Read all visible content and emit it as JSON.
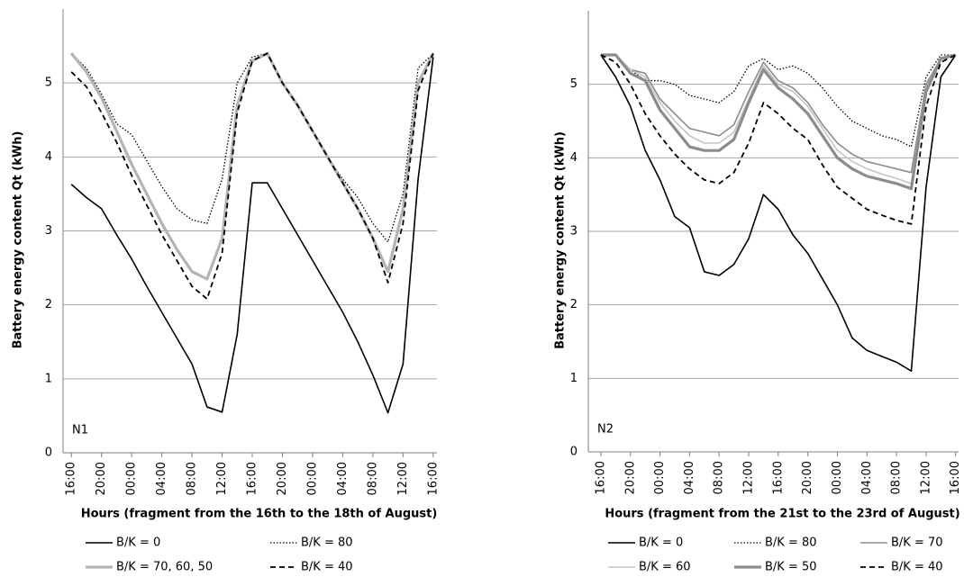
{
  "chart_data": [
    {
      "type": "line",
      "y_label": "Battery energy content Qt (kWh)",
      "x_label": "Hours (fragment from the 16th to the 18th of August)",
      "annotation": "N1",
      "xlim": [
        -1.1,
        48.5
      ],
      "ylim": [
        0,
        6
      ],
      "yticks": [
        0,
        1,
        2,
        3,
        4,
        5
      ],
      "grid": true,
      "xticks": [
        {
          "value": 0,
          "label": "16:00"
        },
        {
          "value": 4,
          "label": "20:00"
        },
        {
          "value": 8,
          "label": "00:00"
        },
        {
          "value": 12,
          "label": "04:00"
        },
        {
          "value": 16,
          "label": "08:00"
        },
        {
          "value": 20,
          "label": "12:00"
        },
        {
          "value": 24,
          "label": "16:00"
        },
        {
          "value": 28,
          "label": "20:00"
        },
        {
          "value": 32,
          "label": "00:00"
        },
        {
          "value": 36,
          "label": "04:00"
        },
        {
          "value": 40,
          "label": "08:00"
        },
        {
          "value": 44,
          "label": "12:00"
        },
        {
          "value": 48,
          "label": "16:00"
        }
      ],
      "x": [
        0,
        2,
        4,
        6,
        8,
        10,
        12,
        14,
        16,
        18,
        20,
        22,
        24,
        26,
        28,
        30,
        32,
        34,
        36,
        38,
        40,
        42,
        44,
        46,
        48
      ],
      "series": [
        {
          "name": "B/K = 0",
          "color": "#000000",
          "style": "solid",
          "values": [
            3.63,
            3.45,
            3.3,
            2.95,
            2.62,
            2.25,
            1.9,
            1.55,
            1.2,
            0.62,
            0.55,
            1.6,
            3.65,
            3.65,
            3.3,
            2.95,
            2.6,
            2.25,
            1.9,
            1.5,
            1.05,
            0.54,
            1.2,
            3.7,
            5.35
          ]
        },
        {
          "name": "B/K = 80",
          "color": "#000000",
          "style": "dotted",
          "values": [
            5.4,
            5.2,
            4.85,
            4.45,
            4.3,
            3.95,
            3.6,
            3.3,
            3.15,
            3.1,
            3.7,
            5.0,
            5.35,
            5.4,
            5.0,
            4.7,
            4.35,
            4.0,
            3.7,
            3.45,
            3.1,
            2.85,
            3.5,
            5.2,
            5.4
          ]
        },
        {
          "name": "B/K = 70, 60, 50",
          "color": "#b4b4b4",
          "style": "thick",
          "values": [
            5.4,
            5.15,
            4.8,
            4.35,
            3.9,
            3.5,
            3.1,
            2.75,
            2.45,
            2.35,
            2.9,
            4.7,
            5.3,
            5.4,
            5.0,
            4.7,
            4.35,
            4.0,
            3.65,
            3.3,
            2.9,
            2.45,
            3.3,
            5.0,
            5.4
          ]
        },
        {
          "name": "B/K = 40",
          "color": "#000000",
          "style": "dashed",
          "values": [
            5.15,
            4.95,
            4.6,
            4.2,
            3.75,
            3.35,
            2.95,
            2.6,
            2.25,
            2.08,
            2.7,
            4.6,
            5.3,
            5.4,
            5.0,
            4.7,
            4.35,
            4.0,
            3.65,
            3.3,
            2.9,
            2.3,
            3.1,
            4.9,
            5.4
          ]
        }
      ]
    },
    {
      "type": "line",
      "y_label": "Battery energy content Qt (kWh)",
      "x_label": "Hours (fragment from the 21st to the 23rd of August)",
      "annotation": "N2",
      "xlim": [
        -1.7,
        48.4
      ],
      "ylim": [
        0,
        6
      ],
      "yticks": [
        0,
        1,
        2,
        3,
        4,
        5
      ],
      "grid": true,
      "xticks": [
        {
          "value": 0,
          "label": "16:00"
        },
        {
          "value": 4,
          "label": "20:00"
        },
        {
          "value": 8,
          "label": "00:00"
        },
        {
          "value": 12,
          "label": "04:00"
        },
        {
          "value": 16,
          "label": "08:00"
        },
        {
          "value": 20,
          "label": "12:00"
        },
        {
          "value": 24,
          "label": "16:00"
        },
        {
          "value": 28,
          "label": "20:00"
        },
        {
          "value": 32,
          "label": "00:00"
        },
        {
          "value": 36,
          "label": "04:00"
        },
        {
          "value": 40,
          "label": "08:00"
        },
        {
          "value": 44,
          "label": "12:00"
        },
        {
          "value": 48,
          "label": "16:00"
        }
      ],
      "x": [
        0,
        2,
        4,
        6,
        8,
        10,
        12,
        14,
        16,
        18,
        20,
        22,
        24,
        26,
        28,
        30,
        32,
        34,
        36,
        38,
        40,
        42,
        44,
        46,
        48
      ],
      "series": [
        {
          "name": "B/K = 0",
          "color": "#000000",
          "style": "solid",
          "values": [
            5.4,
            5.1,
            4.7,
            4.1,
            3.7,
            3.2,
            3.05,
            2.45,
            2.4,
            2.55,
            2.9,
            3.5,
            3.3,
            2.95,
            2.7,
            2.35,
            2.0,
            1.55,
            1.38,
            1.3,
            1.22,
            1.1,
            3.6,
            5.1,
            5.4
          ]
        },
        {
          "name": "B/K = 80",
          "color": "#000000",
          "style": "dotted",
          "values": [
            5.4,
            5.4,
            5.2,
            5.05,
            5.05,
            5.0,
            4.85,
            4.8,
            4.75,
            4.9,
            5.25,
            5.35,
            5.2,
            5.25,
            5.15,
            4.95,
            4.7,
            4.5,
            4.4,
            4.3,
            4.25,
            4.15,
            5.1,
            5.4,
            5.4
          ]
        },
        {
          "name": "B/K = 70",
          "color": "#8c8c8c",
          "style": "solid",
          "values": [
            5.4,
            5.4,
            5.2,
            5.15,
            4.8,
            4.6,
            4.4,
            4.35,
            4.3,
            4.45,
            4.9,
            5.3,
            5.05,
            4.95,
            4.75,
            4.45,
            4.2,
            4.05,
            3.95,
            3.9,
            3.85,
            3.8,
            5.0,
            5.35,
            5.4
          ]
        },
        {
          "name": "B/K = 60",
          "color": "#c4c4c4",
          "style": "solid",
          "values": [
            5.4,
            5.4,
            5.2,
            5.1,
            4.75,
            4.5,
            4.3,
            4.2,
            4.2,
            4.35,
            4.8,
            5.25,
            5.0,
            4.9,
            4.7,
            4.4,
            4.1,
            3.95,
            3.85,
            3.78,
            3.72,
            3.65,
            4.95,
            5.35,
            5.4
          ]
        },
        {
          "name": "B/K = 50",
          "color": "#8c8c8c",
          "style": "thick",
          "values": [
            5.4,
            5.4,
            5.15,
            5.05,
            4.65,
            4.4,
            4.15,
            4.1,
            4.1,
            4.25,
            4.75,
            5.2,
            4.95,
            4.8,
            4.6,
            4.3,
            4.0,
            3.85,
            3.75,
            3.7,
            3.65,
            3.58,
            4.9,
            5.35,
            5.4
          ]
        },
        {
          "name": "B/K = 40",
          "color": "#000000",
          "style": "dashed",
          "values": [
            5.4,
            5.3,
            5.0,
            4.6,
            4.3,
            4.05,
            3.85,
            3.7,
            3.65,
            3.8,
            4.2,
            4.75,
            4.6,
            4.4,
            4.25,
            3.9,
            3.6,
            3.45,
            3.3,
            3.22,
            3.15,
            3.1,
            4.7,
            5.3,
            5.4
          ]
        }
      ]
    }
  ]
}
